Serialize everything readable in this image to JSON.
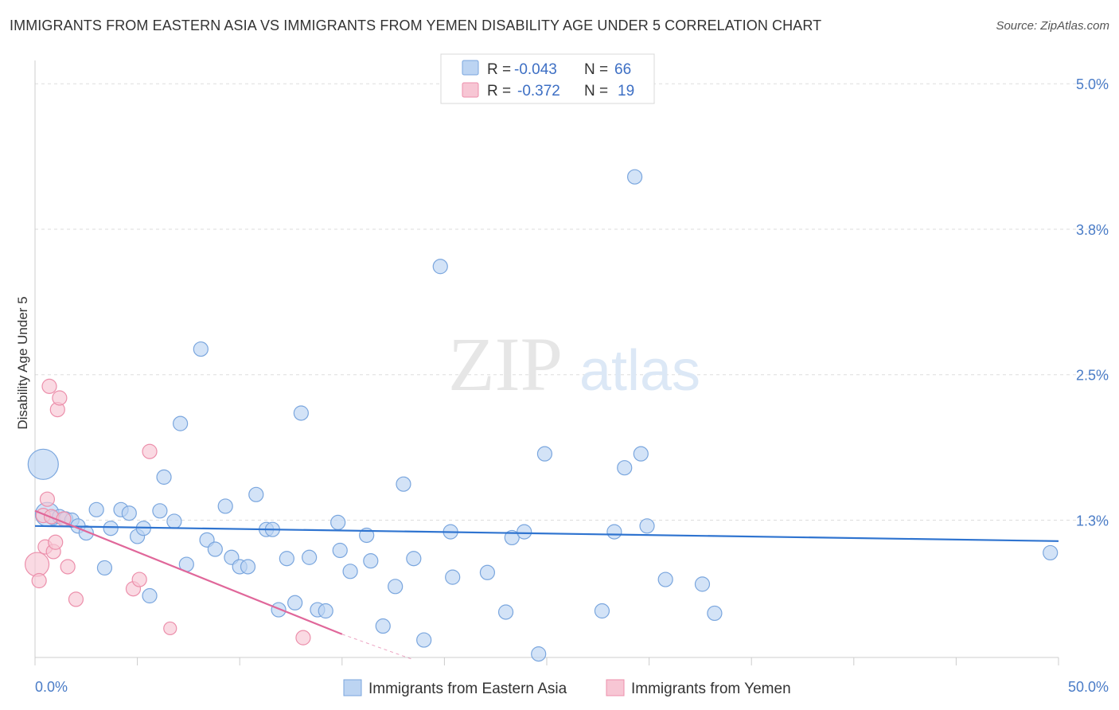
{
  "title": "IMMIGRANTS FROM EASTERN ASIA VS IMMIGRANTS FROM YEMEN DISABILITY AGE UNDER 5 CORRELATION CHART",
  "source": "Source: ZipAtlas.com",
  "watermark": {
    "zip": "ZIP",
    "atlas": "atlas"
  },
  "colors": {
    "blue_fill": "#bcd4f2",
    "blue_stroke": "#7aa6de",
    "blue_line": "#2f74d0",
    "pink_fill": "#f7c6d4",
    "pink_stroke": "#ec8fab",
    "pink_line": "#e0679a",
    "grid": "#dddddd",
    "tick_text": "#4a7cc7"
  },
  "legend": {
    "rows": [
      {
        "r_label": "R =",
        "r_value": "-0.043",
        "n_label": "N =",
        "n_value": "66"
      },
      {
        "r_label": "R =",
        "r_value": "-0.372",
        "n_label": "N =",
        "n_value": "19"
      }
    ]
  },
  "chart_data": {
    "type": "scatter",
    "title": "IMMIGRANTS FROM EASTERN ASIA VS IMMIGRANTS FROM YEMEN DISABILITY AGE UNDER 5 CORRELATION CHART",
    "xlabel": "",
    "ylabel": "Disability Age Under 5",
    "xlim": [
      0,
      50
    ],
    "ylim": [
      0.07,
      5.2
    ],
    "x_tick_labels": [
      "0.0%",
      "50.0%"
    ],
    "y_ticks": [
      {
        "value": 5.0,
        "label": "5.0%"
      },
      {
        "value": 3.75,
        "label": "3.8%"
      },
      {
        "value": 2.5,
        "label": "2.5%"
      },
      {
        "value": 1.25,
        "label": "1.3%"
      }
    ],
    "grid": true,
    "legend_position": "top-center",
    "series": [
      {
        "name": "Immigrants from Eastern Asia",
        "color": "#7aa6de",
        "trend": {
          "x": [
            0,
            50
          ],
          "y": [
            1.2,
            1.07
          ]
        },
        "points": [
          {
            "x": 0.4,
            "y": 1.73,
            "s": 3
          },
          {
            "x": 0.6,
            "y": 1.3,
            "s": 2
          },
          {
            "x": 0.9,
            "y": 1.27,
            "s": 1
          },
          {
            "x": 1.2,
            "y": 1.28,
            "s": 1
          },
          {
            "x": 1.5,
            "y": 1.26,
            "s": 1
          },
          {
            "x": 1.8,
            "y": 1.25,
            "s": 1
          },
          {
            "x": 2.1,
            "y": 1.2,
            "s": 1
          },
          {
            "x": 2.5,
            "y": 1.14,
            "s": 1
          },
          {
            "x": 3.0,
            "y": 1.34,
            "s": 1
          },
          {
            "x": 3.4,
            "y": 0.84,
            "s": 1
          },
          {
            "x": 3.7,
            "y": 1.18,
            "s": 1
          },
          {
            "x": 4.2,
            "y": 1.34,
            "s": 1
          },
          {
            "x": 4.6,
            "y": 1.31,
            "s": 1
          },
          {
            "x": 5.0,
            "y": 1.11,
            "s": 1
          },
          {
            "x": 5.3,
            "y": 1.18,
            "s": 1
          },
          {
            "x": 5.6,
            "y": 0.6,
            "s": 1
          },
          {
            "x": 6.1,
            "y": 1.33,
            "s": 1
          },
          {
            "x": 6.3,
            "y": 1.62,
            "s": 1
          },
          {
            "x": 6.8,
            "y": 1.24,
            "s": 1
          },
          {
            "x": 7.1,
            "y": 2.08,
            "s": 1
          },
          {
            "x": 7.4,
            "y": 0.87,
            "s": 1
          },
          {
            "x": 8.1,
            "y": 2.72,
            "s": 1
          },
          {
            "x": 8.4,
            "y": 1.08,
            "s": 1
          },
          {
            "x": 8.8,
            "y": 1.0,
            "s": 1
          },
          {
            "x": 9.3,
            "y": 1.37,
            "s": 1
          },
          {
            "x": 9.6,
            "y": 0.93,
            "s": 1
          },
          {
            "x": 10.0,
            "y": 0.85,
            "s": 1
          },
          {
            "x": 10.4,
            "y": 0.85,
            "s": 1
          },
          {
            "x": 10.8,
            "y": 1.47,
            "s": 1
          },
          {
            "x": 11.3,
            "y": 1.17,
            "s": 1
          },
          {
            "x": 11.6,
            "y": 1.17,
            "s": 1
          },
          {
            "x": 11.9,
            "y": 0.48,
            "s": 1
          },
          {
            "x": 12.3,
            "y": 0.92,
            "s": 1
          },
          {
            "x": 12.7,
            "y": 0.54,
            "s": 1
          },
          {
            "x": 13.0,
            "y": 2.17,
            "s": 1
          },
          {
            "x": 13.4,
            "y": 0.93,
            "s": 1
          },
          {
            "x": 13.8,
            "y": 0.48,
            "s": 1
          },
          {
            "x": 14.2,
            "y": 0.47,
            "s": 1
          },
          {
            "x": 14.8,
            "y": 1.23,
            "s": 1
          },
          {
            "x": 14.9,
            "y": 0.99,
            "s": 1
          },
          {
            "x": 15.4,
            "y": 0.81,
            "s": 1
          },
          {
            "x": 16.2,
            "y": 1.12,
            "s": 1
          },
          {
            "x": 16.4,
            "y": 0.9,
            "s": 1
          },
          {
            "x": 17.0,
            "y": 0.34,
            "s": 1
          },
          {
            "x": 17.6,
            "y": 0.68,
            "s": 1
          },
          {
            "x": 18.0,
            "y": 1.56,
            "s": 1
          },
          {
            "x": 18.5,
            "y": 0.92,
            "s": 1
          },
          {
            "x": 19.0,
            "y": 0.22,
            "s": 1
          },
          {
            "x": 19.8,
            "y": 3.43,
            "s": 1
          },
          {
            "x": 20.3,
            "y": 1.15,
            "s": 1
          },
          {
            "x": 20.4,
            "y": 0.76,
            "s": 1
          },
          {
            "x": 22.1,
            "y": 0.8,
            "s": 1
          },
          {
            "x": 23.0,
            "y": 0.46,
            "s": 1
          },
          {
            "x": 23.3,
            "y": 1.1,
            "s": 1
          },
          {
            "x": 23.9,
            "y": 1.15,
            "s": 1
          },
          {
            "x": 24.6,
            "y": 0.1,
            "s": 1
          },
          {
            "x": 24.9,
            "y": 1.82,
            "s": 1
          },
          {
            "x": 27.7,
            "y": 0.47,
            "s": 1
          },
          {
            "x": 28.3,
            "y": 1.15,
            "s": 1
          },
          {
            "x": 28.8,
            "y": 1.7,
            "s": 1
          },
          {
            "x": 29.3,
            "y": 4.2,
            "s": 1
          },
          {
            "x": 29.6,
            "y": 1.82,
            "s": 1
          },
          {
            "x": 29.9,
            "y": 1.2,
            "s": 1
          },
          {
            "x": 30.8,
            "y": 0.74,
            "s": 1
          },
          {
            "x": 32.6,
            "y": 0.7,
            "s": 1
          },
          {
            "x": 33.2,
            "y": 0.45,
            "s": 1
          },
          {
            "x": 49.6,
            "y": 0.97,
            "s": 1
          }
        ]
      },
      {
        "name": "Immigrants from Yemen",
        "color": "#ec8fab",
        "trend": {
          "x": [
            0,
            15
          ],
          "y": [
            1.33,
            0.27
          ]
        },
        "trend_dashed": {
          "x": [
            15,
            18.5
          ],
          "y": [
            0.27,
            0.05
          ]
        },
        "points": [
          {
            "x": 0.1,
            "y": 0.87,
            "s": 2
          },
          {
            "x": 0.2,
            "y": 0.73,
            "s": 1
          },
          {
            "x": 0.4,
            "y": 1.29,
            "s": 1
          },
          {
            "x": 0.5,
            "y": 1.02,
            "s": 1
          },
          {
            "x": 0.8,
            "y": 1.28,
            "s": 1
          },
          {
            "x": 0.6,
            "y": 1.43,
            "s": 1
          },
          {
            "x": 0.9,
            "y": 0.98,
            "s": 1
          },
          {
            "x": 0.7,
            "y": 2.4,
            "s": 1
          },
          {
            "x": 1.0,
            "y": 1.06,
            "s": 1
          },
          {
            "x": 1.1,
            "y": 2.2,
            "s": 1
          },
          {
            "x": 1.2,
            "y": 2.3,
            "s": 1
          },
          {
            "x": 1.4,
            "y": 1.26,
            "s": 1
          },
          {
            "x": 1.6,
            "y": 0.85,
            "s": 1
          },
          {
            "x": 2.0,
            "y": 0.57,
            "s": 1
          },
          {
            "x": 4.8,
            "y": 0.66,
            "s": 1
          },
          {
            "x": 5.1,
            "y": 0.74,
            "s": 1
          },
          {
            "x": 5.6,
            "y": 1.84,
            "s": 1
          },
          {
            "x": 13.1,
            "y": 0.24,
            "s": 1
          },
          {
            "x": 6.6,
            "y": 0.32,
            "s": 0
          }
        ]
      }
    ]
  },
  "bottom_legend": [
    {
      "label": "Immigrants from Eastern Asia"
    },
    {
      "label": "Immigrants from Yemen"
    }
  ]
}
